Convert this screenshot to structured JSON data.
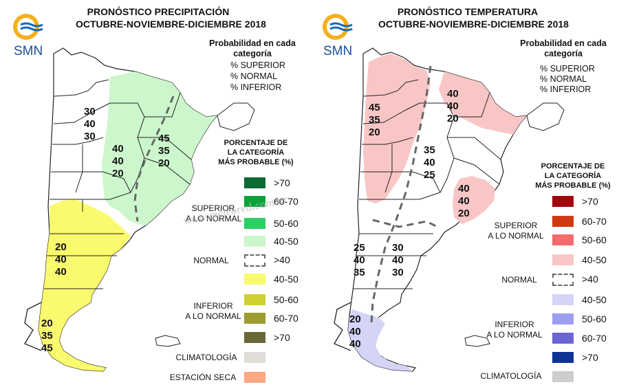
{
  "watermark": "www.meteored.com.ar",
  "panels": {
    "precip": {
      "title_1": "PRONÓSTICO PRECIPITACIÓN",
      "title_2": "OCTUBRE-NOVIEMBRE-DICIEMBRE 2018",
      "logo_text": "SMN",
      "probability_title_1": "Probabilidad en cada",
      "probability_title_2": "categoría",
      "probability_lines": [
        "% SUPERIOR",
        "% NORMAL",
        "% INFERIOR"
      ],
      "legend_title": [
        "PORCENTAJE DE",
        "LA CATEGORÍA",
        "MÁS PROBABLE (%)"
      ],
      "groups": {
        "superior": [
          "SUPERIOR",
          "A LO NORMAL"
        ],
        "normal": "NORMAL",
        "inferior": [
          "INFERIOR",
          "A LO NORMAL"
        ],
        "climatologia": "CLIMATOLOGÍA",
        "estacion_seca": "ESTACIÓN SECA"
      },
      "legend_items": [
        {
          "label": ">70",
          "color": "#0a6b33"
        },
        {
          "label": "60-70",
          "color": "#0ca23b"
        },
        {
          "label": "50-60",
          "color": "#2ecf64"
        },
        {
          "label": "40-50",
          "color": "#ccf7cc"
        },
        {
          "label": ">40",
          "color": "dashed"
        },
        {
          "label": "40-50",
          "color": "#fafa6e"
        },
        {
          "label": "50-60",
          "color": "#cfcf30"
        },
        {
          "label": "60-70",
          "color": "#9c9c2f"
        },
        {
          "label": ">70",
          "color": "#6b6638"
        },
        {
          "label": "",
          "color": "#e0ddd9"
        },
        {
          "label": "",
          "color": "#f9a881"
        }
      ],
      "map_labels": [
        [
          "30",
          "40",
          "30"
        ],
        [
          "40",
          "40",
          "20"
        ],
        [
          "45",
          "35",
          "20"
        ],
        [
          "20",
          "40",
          "40"
        ],
        [
          "20",
          "35",
          "45"
        ]
      ]
    },
    "temp": {
      "title_1": "PRONÓSTICO TEMPERATURA",
      "title_2": "OCTUBRE-NOVIEMBRE-DICIEMBRE 2018",
      "logo_text": "SMN",
      "probability_title_1": "Probabilidad en cada",
      "probability_title_2": "categoría",
      "probability_lines": [
        "% SUPERIOR",
        "% NORMAL",
        "% INFERIOR"
      ],
      "legend_title": [
        "PORCENTAJE DE",
        "LA CATEGORÍA",
        "MÁS PROBABLE (%)"
      ],
      "groups": {
        "superior": [
          "SUPERIOR",
          "A LO NORMAL"
        ],
        "normal": "NORMAL",
        "inferior": [
          "INFERIOR",
          "A LO NORMAL"
        ],
        "climatologia": "CLIMATOLOGÍA"
      },
      "legend_items": [
        {
          "label": ">70",
          "color": "#a0060c"
        },
        {
          "label": "60-70",
          "color": "#d03a12"
        },
        {
          "label": "50-60",
          "color": "#f56a6a"
        },
        {
          "label": "40-50",
          "color": "#f9c6c6"
        },
        {
          "label": ">40",
          "color": "dashed"
        },
        {
          "label": "40-50",
          "color": "#d4d4f7"
        },
        {
          "label": "50-60",
          "color": "#9d9df2"
        },
        {
          "label": "60-70",
          "color": "#6b66d6"
        },
        {
          "label": ">70",
          "color": "#0f3396"
        },
        {
          "label": "",
          "color": "#cfcdcb"
        }
      ],
      "map_labels": [
        [
          "45",
          "35",
          "20"
        ],
        [
          "40",
          "40",
          "20"
        ],
        [
          "35",
          "40",
          "25"
        ],
        [
          "40",
          "40",
          "20"
        ],
        [
          "25",
          "40",
          "35"
        ],
        [
          "30",
          "40",
          "30"
        ],
        [
          "20",
          "40",
          "40"
        ]
      ]
    }
  }
}
